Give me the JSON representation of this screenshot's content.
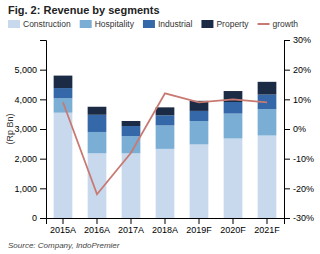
{
  "chart_data": {
    "type": "bar",
    "stacked": true,
    "title": "Fig. 2: Revenue by segments",
    "annotations": [
      "Source:  Company, IndoPremier"
    ],
    "ylabel": "(Rp Bn)",
    "categories": [
      "2015A",
      "2016A",
      "2017A",
      "2018A",
      "2019F",
      "2020F",
      "2021F"
    ],
    "series": [
      {
        "name": "Construction",
        "color": "#c8d9ee",
        "values": [
          3550,
          2180,
          2180,
          2330,
          2480,
          2680,
          2780
        ]
      },
      {
        "name": "Hospitality",
        "color": "#7aaed4",
        "values": [
          490,
          720,
          580,
          790,
          790,
          840,
          890
        ]
      },
      {
        "name": "Industrial",
        "color": "#3568a8",
        "values": [
          340,
          580,
          340,
          340,
          340,
          390,
          490
        ]
      },
      {
        "name": "Property",
        "color": "#1c2b45",
        "values": [
          420,
          270,
          170,
          270,
          340,
          370,
          430
        ]
      },
      {
        "name": "growth",
        "type": "line",
        "axis": "y2",
        "color": "#c87a72",
        "values": [
          9,
          -22,
          -8,
          12,
          9,
          10,
          9
        ]
      }
    ],
    "ylim": [
      0,
      6000
    ],
    "yticks": [
      0,
      {
        "value": 1000,
        "label": "1,000"
      },
      {
        "value": 2000,
        "label": "2,000"
      },
      {
        "value": 3000,
        "label": "3,000"
      },
      {
        "value": 4000,
        "label": "4,000"
      },
      {
        "value": 5000,
        "label": "5,000"
      }
    ],
    "y2lim": [
      -30,
      30
    ],
    "y2ticks": [
      {
        "value": -30,
        "label": "-30%"
      },
      {
        "value": -20,
        "label": "-20%"
      },
      {
        "value": -10,
        "label": "-10%"
      },
      {
        "value": 0,
        "label": "0%"
      },
      {
        "value": 10,
        "label": "10%"
      },
      {
        "value": 20,
        "label": "20%"
      },
      {
        "value": 30,
        "label": "30%"
      }
    ],
    "legend": "top",
    "grid": false
  }
}
